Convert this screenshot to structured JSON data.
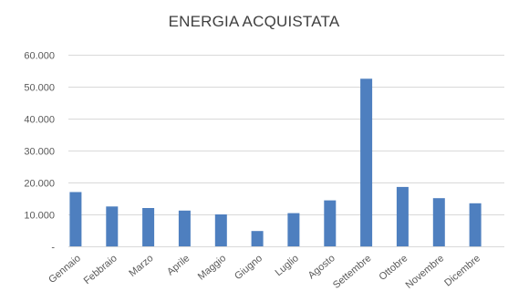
{
  "chart_data": {
    "type": "bar",
    "title": "ENERGIA ACQUISTATA",
    "xlabel": "",
    "ylabel": "",
    "categories": [
      "Gennaio",
      "Febbraio",
      "Marzo",
      "Aprile",
      "Maggio",
      "Giugno",
      "Luglio",
      "Agosto",
      "Settembre",
      "Ottobre",
      "Novembre",
      "Dicembre"
    ],
    "values": [
      17000,
      12500,
      12000,
      11200,
      10000,
      4800,
      10400,
      14400,
      52500,
      18600,
      15100,
      13500
    ],
    "ylim": [
      0,
      60000
    ],
    "yticks": [
      0,
      10000,
      20000,
      30000,
      40000,
      50000,
      60000
    ],
    "ytick_labels": [
      "-",
      "10.000",
      "20.000",
      "30.000",
      "40.000",
      "50.000",
      "60.000"
    ],
    "grid": true,
    "legend": "none",
    "bar_color": "#4e7fbf"
  }
}
